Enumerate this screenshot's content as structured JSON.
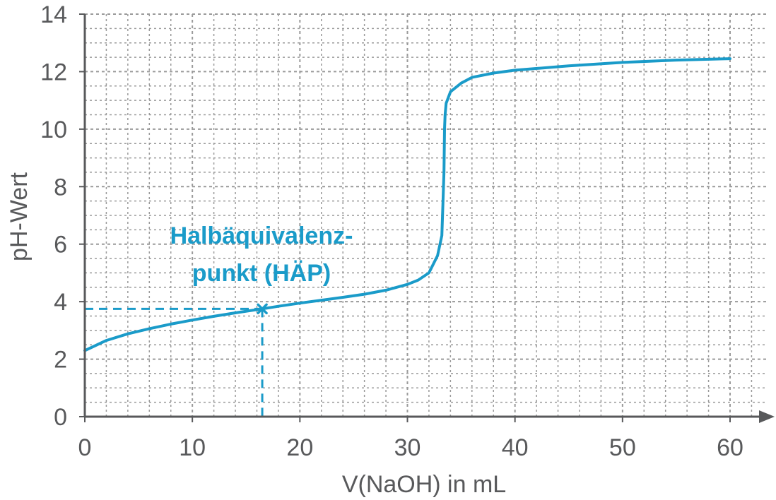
{
  "chart_data": {
    "type": "line",
    "xlabel": "V(NaOH) in mL",
    "ylabel": "pH-Wert",
    "xlim": [
      0,
      60
    ],
    "ylim": [
      0,
      14
    ],
    "x_ticks": [
      "0",
      "10",
      "20",
      "30",
      "40",
      "50",
      "60"
    ],
    "y_ticks": [
      "0",
      "2",
      "4",
      "6",
      "8",
      "10",
      "12",
      "14"
    ],
    "grid": true,
    "colors": {
      "curve": "#1a9bc9",
      "marker": "#1a9bc9",
      "axis": "#58595b",
      "grid": "#9a9a9a"
    },
    "series": [
      {
        "x": [
          0,
          2,
          4,
          6,
          8,
          10,
          12,
          14,
          16.5,
          18,
          20,
          22,
          24,
          26,
          28,
          30,
          31,
          32,
          32.8,
          33.2,
          33.4,
          33.45,
          33.5,
          33.6,
          34,
          35,
          36,
          38,
          40,
          45,
          50,
          55,
          60
        ],
        "y": [
          2.3,
          2.65,
          2.88,
          3.06,
          3.22,
          3.36,
          3.49,
          3.61,
          3.75,
          3.84,
          3.95,
          4.05,
          4.15,
          4.26,
          4.4,
          4.6,
          4.75,
          5.0,
          5.6,
          6.3,
          8.5,
          10.0,
          10.5,
          10.9,
          11.3,
          11.6,
          11.8,
          11.95,
          12.05,
          12.2,
          12.32,
          12.4,
          12.45
        ]
      }
    ],
    "annotations": [
      {
        "lines": [
          "Halbäquivalenz-",
          "punkt (HÄP)"
        ],
        "point": {
          "x": 16.5,
          "y": 3.75
        }
      }
    ]
  }
}
